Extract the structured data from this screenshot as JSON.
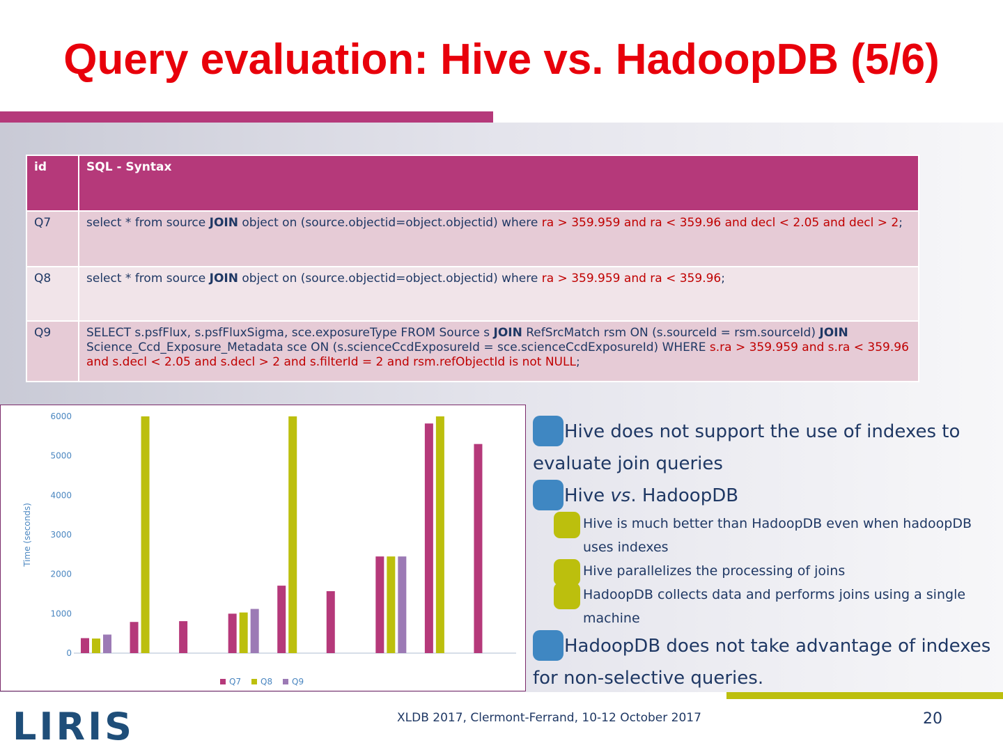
{
  "title": "Query evaluation: Hive vs. HadoopDB (5/6)",
  "table": {
    "header": [
      "id",
      "SQL - Syntax"
    ],
    "rows": [
      {
        "id": "Q7",
        "sql": [
          {
            "text": "select * from source "
          },
          {
            "text": "JOIN",
            "style": "bold"
          },
          {
            "text": " object on (source.objectid=object.objectid) where "
          },
          {
            "text": "ra > 359.959 and ra < 359.96 and decl < 2.05 and decl > 2",
            "style": "red"
          },
          {
            "text": ";"
          }
        ]
      },
      {
        "id": "Q8",
        "sql": [
          {
            "text": "select * from source "
          },
          {
            "text": "JOIN",
            "style": "bold"
          },
          {
            "text": " object on (source.objectid=object.objectid) where "
          },
          {
            "text": "ra > 359.959 and ra < 359.96",
            "style": "red"
          },
          {
            "text": ";"
          }
        ]
      },
      {
        "id": "Q9",
        "sql": [
          {
            "text": "SELECT s.psfFlux, s.psfFluxSigma, sce.exposureType FROM Source s "
          },
          {
            "text": "JOIN",
            "style": "bold"
          },
          {
            "text": " RefSrcMatch rsm ON (s.sourceId = rsm.sourceId) "
          },
          {
            "text": "JOIN",
            "style": "bold"
          },
          {
            "text": " Science_Ccd_Exposure_Metadata sce ON (s.scienceCcdExposureId = sce.scienceCcdExposureId) WHERE "
          },
          {
            "text": "s.ra > 359.959 and s.ra < 359.96 and s.decl < 2.05 and s.decl > 2 and s.filterId = 2 and rsm.refObjectId is not NULL",
            "style": "red"
          },
          {
            "text": ";"
          }
        ]
      }
    ]
  },
  "chart_data": {
    "type": "bar",
    "y_label": "Time (seconds)",
    "categories": [
      null,
      null,
      null,
      null,
      null,
      null,
      null,
      null,
      null
    ],
    "series": [
      {
        "name": "Q7",
        "color": "#b5397a",
        "values": [
          380,
          790,
          810,
          1000,
          1710,
          1570,
          2450,
          5820,
          5300
        ]
      },
      {
        "name": "Q8",
        "color": "#bcbf0d",
        "values": [
          370,
          6000,
          null,
          1030,
          6000,
          null,
          2450,
          6000,
          null
        ]
      },
      {
        "name": "Q9",
        "color": "#9c7ab5",
        "values": [
          470,
          null,
          null,
          1120,
          null,
          null,
          2450,
          null,
          null
        ]
      }
    ],
    "ylim": [
      0,
      6000
    ],
    "yticks": [
      0,
      1000,
      2000,
      3000,
      4000,
      5000,
      6000
    ],
    "grid": false,
    "legend": "bottom"
  },
  "bullets": [
    {
      "level": 1,
      "parts": [
        {
          "text": "Hive does not support the use of indexes to evaluate join queries"
        }
      ]
    },
    {
      "level": 1,
      "parts": [
        {
          "text": "Hive "
        },
        {
          "text": "vs",
          "style": "italic"
        },
        {
          "text": ". HadoopDB"
        }
      ]
    },
    {
      "level": 2,
      "parts": [
        {
          "text": "Hive is much better than HadoopDB even when hadoopDB uses indexes"
        }
      ]
    },
    {
      "level": 2,
      "parts": [
        {
          "text": "Hive parallelizes the processing of joins"
        }
      ]
    },
    {
      "level": 2,
      "parts": [
        {
          "text": "HadoopDB collects data and performs joins using a single machine"
        }
      ]
    },
    {
      "level": 1,
      "parts": [
        {
          "text": "HadoopDB does not take advantage of indexes for non-selective queries."
        }
      ]
    }
  ],
  "footer": {
    "logo": "LIRIS",
    "event": "XLDB 2017,  Clermont-Ferrand, 10-12 October 2017",
    "page": "20"
  }
}
